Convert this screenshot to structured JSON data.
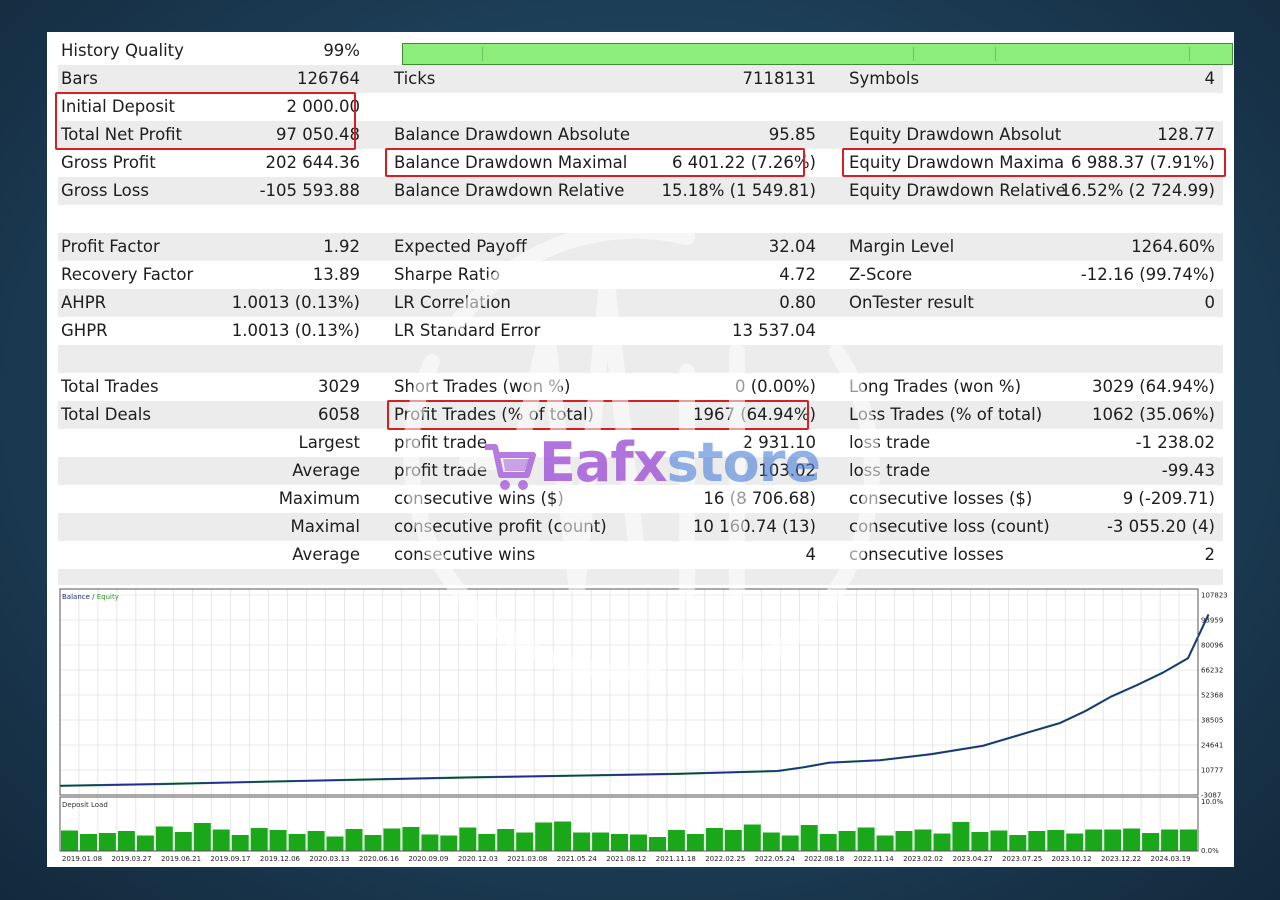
{
  "stats": {
    "history_quality": {
      "label": "History Quality",
      "value": "99%"
    },
    "bars": {
      "label": "Bars",
      "value": "126764"
    },
    "ticks": {
      "label": "Ticks",
      "value": "7118131"
    },
    "symbols": {
      "label": "Symbols",
      "value": "4"
    },
    "initial_deposit": {
      "label": "Initial Deposit",
      "value": "2 000.00"
    },
    "total_net_profit": {
      "label": "Total Net Profit",
      "value": "97 050.48"
    },
    "balance_dd_absolute": {
      "label": "Balance Drawdown Absolute",
      "value": "95.85"
    },
    "equity_dd_absolute": {
      "label": "Equity Drawdown Absolut",
      "value": "128.77"
    },
    "gross_profit": {
      "label": "Gross Profit",
      "value": "202 644.36"
    },
    "balance_dd_maximal": {
      "label": "Balance Drawdown Maximal",
      "value": "6 401.22 (7.26%)"
    },
    "equity_dd_maximal": {
      "label": "Equity Drawdown Maxima",
      "value": "6 988.37 (7.91%)"
    },
    "gross_loss": {
      "label": "Gross Loss",
      "value": "-105 593.88"
    },
    "balance_dd_relative": {
      "label": "Balance Drawdown Relative",
      "value": "15.18% (1 549.81)"
    },
    "equity_dd_relative": {
      "label": "Equity Drawdown Relative",
      "value": "16.52% (2 724.99)"
    },
    "profit_factor": {
      "label": "Profit Factor",
      "value": "1.92"
    },
    "expected_payoff": {
      "label": "Expected Payoff",
      "value": "32.04"
    },
    "margin_level": {
      "label": "Margin Level",
      "value": "1264.60%"
    },
    "recovery_factor": {
      "label": "Recovery Factor",
      "value": "13.89"
    },
    "sharpe_ratio": {
      "label": "Sharpe Ratio",
      "value": "4.72"
    },
    "z_score": {
      "label": "Z-Score",
      "value": "-12.16 (99.74%)"
    },
    "ahpr": {
      "label": "AHPR",
      "value": "1.0013 (0.13%)"
    },
    "lr_correlation": {
      "label": "LR Correlation",
      "value": "0.80"
    },
    "ontester_result": {
      "label": "OnTester result",
      "value": "0"
    },
    "ghpr": {
      "label": "GHPR",
      "value": "1.0013 (0.13%)"
    },
    "lr_standard_error": {
      "label": "LR Standard Error",
      "value": "13 537.04"
    },
    "total_trades": {
      "label": "Total Trades",
      "value": "3029"
    },
    "short_trades": {
      "label": "Short Trades (won %)",
      "value": "0 (0.00%)"
    },
    "long_trades": {
      "label": "Long Trades (won %)",
      "value": "3029 (64.94%)"
    },
    "total_deals": {
      "label": "Total Deals",
      "value": "6058"
    },
    "profit_trades": {
      "label": "Profit Trades (% of total)",
      "value": "1967 (64.94%)"
    },
    "loss_trades": {
      "label": "Loss Trades (% of total)",
      "value": "1062 (35.06%)"
    },
    "largest": {
      "label": "Largest",
      "profit_label": "profit trade",
      "profit_value": "2 931.10",
      "loss_label": "loss trade",
      "loss_value": "-1 238.02"
    },
    "average": {
      "label": "Average",
      "profit_label": "profit trade",
      "profit_value": "103.02",
      "loss_label": "loss trade",
      "loss_value": "-99.43"
    },
    "maximum": {
      "label": "Maximum",
      "profit_label": "consecutive wins ($)",
      "profit_value": "16 (8 706.68)",
      "loss_label": "consecutive losses ($)",
      "loss_value": "9 (-209.71)"
    },
    "maximal": {
      "label": "Maximal",
      "profit_label": "consecutive profit (count)",
      "profit_value": "10 160.74 (13)",
      "loss_label": "consecutive loss (count)",
      "loss_value": "-3 055.20 (4)"
    },
    "average_consec": {
      "label": "Average",
      "profit_label": "consecutive wins",
      "profit_value": "4",
      "loss_label": "consecutive losses",
      "loss_value": "2"
    }
  },
  "history_quality_fraction": 0.99,
  "watermark": {
    "brand": "Eafx",
    "brand2": "store"
  },
  "colors": {
    "row_alt": "#ececec",
    "quality_bar": "#8ded7a",
    "highlight": "#d42020",
    "balance_line": "#1e2e8c",
    "equity_line": "#2c9b2c",
    "load_bars": "#1aa81a",
    "brand_purple": "#a45bd9",
    "brand_blue": "#4a7fd8"
  },
  "chart_data": [
    {
      "type": "line",
      "legend": {
        "balance": "Balance",
        "separator": " / ",
        "equity": "Equity"
      },
      "y_ticks": [
        107823,
        93959,
        80096,
        66232,
        52368,
        38505,
        24641,
        10777,
        -3087
      ],
      "ylim": [
        -3087,
        107823
      ],
      "x_ticks": [
        "2019.01.08",
        "2019.03.27",
        "2019.06.21",
        "2019.09.17",
        "2019.12.06",
        "2020.03.13",
        "2020.06.16",
        "2020.09.09",
        "2020.12.03",
        "2021.03.08",
        "2021.05.24",
        "2021.08.12",
        "2021.11.18",
        "2022.02.25",
        "2022.05.24",
        "2022.08.18",
        "2022.11.14",
        "2023.02.02",
        "2023.04.27",
        "2023.07.25",
        "2023.10.12",
        "2023.12.22",
        "2024.03.19"
      ],
      "series": [
        {
          "name": "Balance",
          "x": [
            0,
            2,
            4,
            6,
            8,
            10,
            12,
            14,
            14.5,
            15,
            16,
            17,
            18,
            19,
            19.5,
            20,
            20.5,
            21,
            21.5,
            22,
            22.4
          ],
          "y": [
            2000,
            3000,
            4300,
            5500,
            6700,
            7600,
            8600,
            10200,
            12300,
            14800,
            16200,
            19600,
            24200,
            32600,
            36800,
            43500,
            51500,
            57800,
            64600,
            72800,
            97000
          ]
        },
        {
          "name": "Equity",
          "x": [
            0,
            2,
            4,
            6,
            8,
            10,
            12,
            14,
            14.5,
            15,
            16,
            17,
            18,
            19,
            19.5,
            20,
            20.5,
            21,
            21.5,
            22,
            22.4
          ],
          "y": [
            2000,
            3000,
            4300,
            5500,
            6700,
            7600,
            8600,
            10200,
            12300,
            14800,
            16200,
            19600,
            24200,
            32600,
            36800,
            43500,
            51500,
            57800,
            64600,
            72800,
            97000
          ]
        }
      ]
    },
    {
      "type": "bar",
      "title": "Deposit Load",
      "y_ticks": [
        "10.0%",
        "0.0%"
      ],
      "ylim": [
        0,
        10
      ],
      "values": [
        4.1,
        3.4,
        3.6,
        4.0,
        3.1,
        4.9,
        3.8,
        5.6,
        4.3,
        3.2,
        4.6,
        4.2,
        3.4,
        4.0,
        2.9,
        4.4,
        3.2,
        4.5,
        4.8,
        3.3,
        3.1,
        4.7,
        3.4,
        4.4,
        3.7,
        5.7,
        5.9,
        3.7,
        3.7,
        3.4,
        3.3,
        2.8,
        4.2,
        3.4,
        4.6,
        4.2,
        5.3,
        3.7,
        3.1,
        5.2,
        3.4,
        4.0,
        4.7,
        3.1,
        4.0,
        4.3,
        3.5,
        5.8,
        3.8,
        4.1,
        3.2,
        4.0,
        4.2,
        3.5,
        4.3,
        4.3,
        4.5,
        3.6,
        4.3,
        4.3
      ]
    }
  ]
}
